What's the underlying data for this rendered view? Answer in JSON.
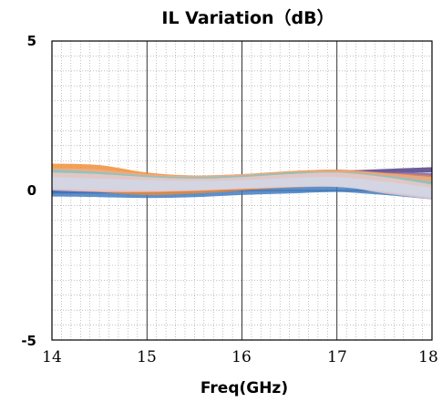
{
  "chart_data": {
    "type": "area",
    "title": "IL Variation（dB）",
    "xlabel": "Freq(GHz)",
    "ylabel": "",
    "xlim": [
      14,
      18
    ],
    "ylim": [
      -5,
      5
    ],
    "x_ticks": [
      "14",
      "15",
      "16",
      "17",
      "18"
    ],
    "y_ticks": [
      "5",
      "0",
      "-5"
    ],
    "grid": true,
    "legend": "none",
    "x": [
      14,
      14.5,
      15,
      15.5,
      16,
      16.5,
      17,
      17.5,
      18
    ],
    "series": [
      {
        "color": "#4a3a80",
        "upper": [
          0.35,
          0.32,
          0.3,
          0.32,
          0.45,
          0.58,
          0.65,
          0.72,
          0.78
        ],
        "lower": [
          -0.1,
          -0.1,
          -0.05,
          0.0,
          0.12,
          0.3,
          0.45,
          0.58,
          0.6
        ]
      },
      {
        "color": "#7a5aa8",
        "upper": [
          0.45,
          0.4,
          0.35,
          0.38,
          0.5,
          0.62,
          0.68,
          0.65,
          0.58
        ],
        "lower": [
          -0.05,
          -0.08,
          -0.1,
          -0.05,
          0.05,
          0.15,
          0.25,
          0.25,
          0.2
        ]
      },
      {
        "color": "#3a78c0",
        "upper": [
          0.2,
          0.18,
          0.12,
          0.08,
          0.06,
          0.12,
          0.28,
          0.3,
          0.22
        ],
        "lower": [
          -0.2,
          -0.22,
          -0.25,
          -0.22,
          -0.15,
          -0.1,
          -0.05,
          -0.15,
          -0.3
        ]
      },
      {
        "color": "#f08a30",
        "upper": [
          0.9,
          0.85,
          0.6,
          0.5,
          0.55,
          0.65,
          0.7,
          0.6,
          0.5
        ],
        "lower": [
          0.1,
          -0.05,
          -0.15,
          -0.1,
          0.0,
          0.1,
          0.15,
          0.05,
          -0.1
        ]
      },
      {
        "color": "#e8b090",
        "upper": [
          0.75,
          0.7,
          0.55,
          0.5,
          0.55,
          0.62,
          0.68,
          0.58,
          0.45
        ],
        "lower": [
          0.05,
          -0.02,
          -0.05,
          -0.02,
          0.05,
          0.1,
          0.12,
          0.0,
          -0.15
        ]
      },
      {
        "color": "#7fc8c8",
        "upper": [
          0.7,
          0.62,
          0.5,
          0.45,
          0.5,
          0.6,
          0.62,
          0.5,
          0.3
        ],
        "lower": [
          0.15,
          0.1,
          0.05,
          0.05,
          0.1,
          0.18,
          0.2,
          0.0,
          -0.2
        ]
      },
      {
        "color": "#f2c8c8",
        "upper": [
          0.6,
          0.55,
          0.45,
          0.4,
          0.45,
          0.55,
          0.6,
          0.45,
          0.2
        ],
        "lower": [
          0.0,
          -0.05,
          -0.05,
          0.0,
          0.05,
          0.12,
          0.15,
          -0.1,
          -0.3
        ]
      },
      {
        "color": "#d0d8e8",
        "upper": [
          0.45,
          0.4,
          0.35,
          0.32,
          0.35,
          0.42,
          0.45,
          0.3,
          0.1
        ],
        "lower": [
          0.05,
          0.02,
          0.0,
          0.02,
          0.08,
          0.12,
          0.12,
          -0.05,
          -0.25
        ]
      }
    ]
  }
}
